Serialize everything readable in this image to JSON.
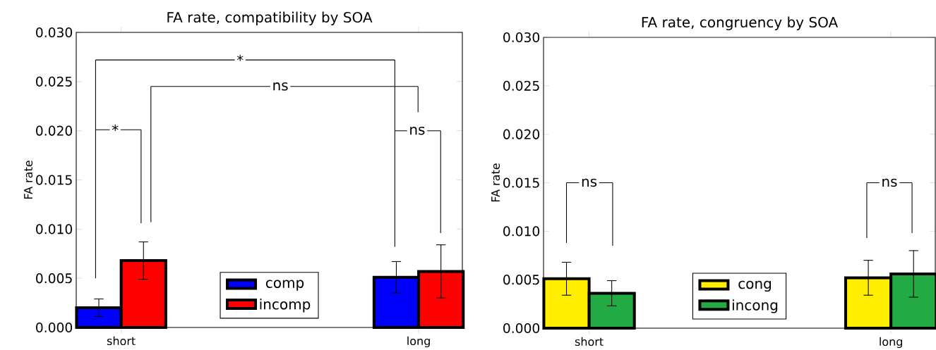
{
  "chart_data": [
    {
      "type": "bar",
      "title": "FA rate, compatibility by SOA",
      "ylabel": "FA rate",
      "categories": [
        "short",
        "long"
      ],
      "series": [
        {
          "name": "comp",
          "color": "#0000ff",
          "values": [
            0.002,
            0.0051
          ],
          "errors": [
            0.0009,
            0.0016
          ]
        },
        {
          "name": "incomp",
          "color": "#ff0000",
          "values": [
            0.0068,
            0.0057
          ],
          "errors": [
            0.0019,
            0.0027
          ]
        }
      ],
      "ylim": [
        0,
        0.03
      ],
      "yticks": [
        {
          "value": 0,
          "label": "0.000"
        },
        {
          "value": 0.005,
          "label": "0.005"
        },
        {
          "value": 0.01,
          "label": "0.010"
        },
        {
          "value": 0.015,
          "label": "0.015"
        },
        {
          "value": 0.02,
          "label": "0.020"
        },
        {
          "value": 0.025,
          "label": "0.025"
        },
        {
          "value": 0.03,
          "label": "0.030"
        }
      ],
      "legend": "bottom",
      "grid": false,
      "annotations": [
        "*",
        "ns",
        "*",
        "ns"
      ]
    },
    {
      "type": "bar",
      "title": "FA rate, congruency by SOA",
      "ylabel": "FA rate",
      "categories": [
        "short",
        "long"
      ],
      "series": [
        {
          "name": "cong",
          "color": "#ffee00",
          "values": [
            0.0051,
            0.0052
          ],
          "errors": [
            0.0017,
            0.0018
          ]
        },
        {
          "name": "incong",
          "color": "#22aa44",
          "values": [
            0.0036,
            0.0056
          ],
          "errors": [
            0.0013,
            0.0024
          ]
        }
      ],
      "ylim": [
        0,
        0.03
      ],
      "yticks": [
        {
          "value": 0,
          "label": "0.000"
        },
        {
          "value": 0.005,
          "label": "0.005"
        },
        {
          "value": 0.01,
          "label": "0.010"
        },
        {
          "value": 0.015,
          "label": "0.015"
        },
        {
          "value": 0.02,
          "label": "0.020"
        },
        {
          "value": 0.025,
          "label": "0.025"
        },
        {
          "value": 0.03,
          "label": "0.030"
        }
      ],
      "legend": "bottom",
      "grid": false,
      "annotations": [
        "ns",
        "ns"
      ]
    }
  ]
}
